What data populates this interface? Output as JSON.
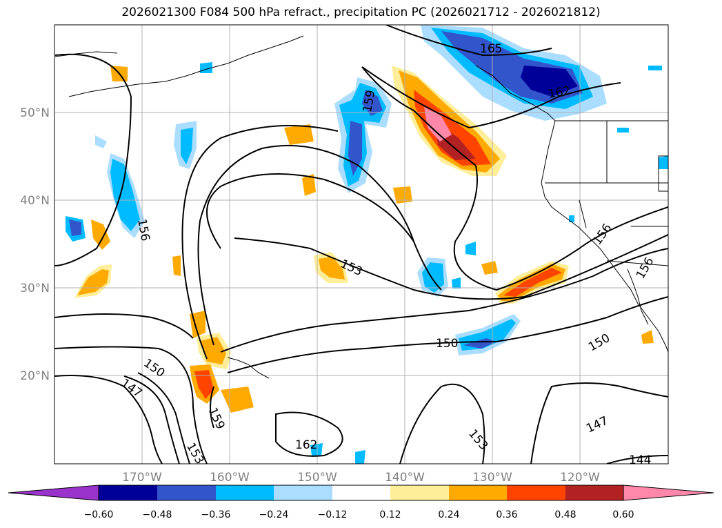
{
  "title": "2026021300 F084 500 hPa refract., precipitation PC (2026021712 - 2026021812)",
  "map": {
    "lat_labels": [
      "50°N",
      "40°N",
      "30°N",
      "20°N"
    ],
    "lon_labels": [
      "170°W",
      "160°W",
      "150°W",
      "140°W",
      "130°W",
      "120°W"
    ],
    "contour_labels": [
      "165",
      "162",
      "159",
      "156",
      "156",
      "156",
      "153",
      "153",
      "150",
      "150",
      "150",
      "147",
      "147",
      "159",
      "153",
      "162",
      "144"
    ],
    "colors": {
      "coast": "#000000",
      "grid": "#b0b0b0",
      "tick_label": "#808080"
    }
  },
  "colorbar": {
    "ticks": [
      "−0.60",
      "−0.48",
      "−0.36",
      "−0.24",
      "−0.12",
      "0.12",
      "0.24",
      "0.36",
      "0.48",
      "0.60"
    ],
    "colors": [
      "#9933cc",
      "#000099",
      "#3355cc",
      "#00bbff",
      "#aaddff",
      "#ffffff",
      "#ffee99",
      "#ffaa00",
      "#ff4400",
      "#b22222",
      "#ff88aa"
    ]
  }
}
